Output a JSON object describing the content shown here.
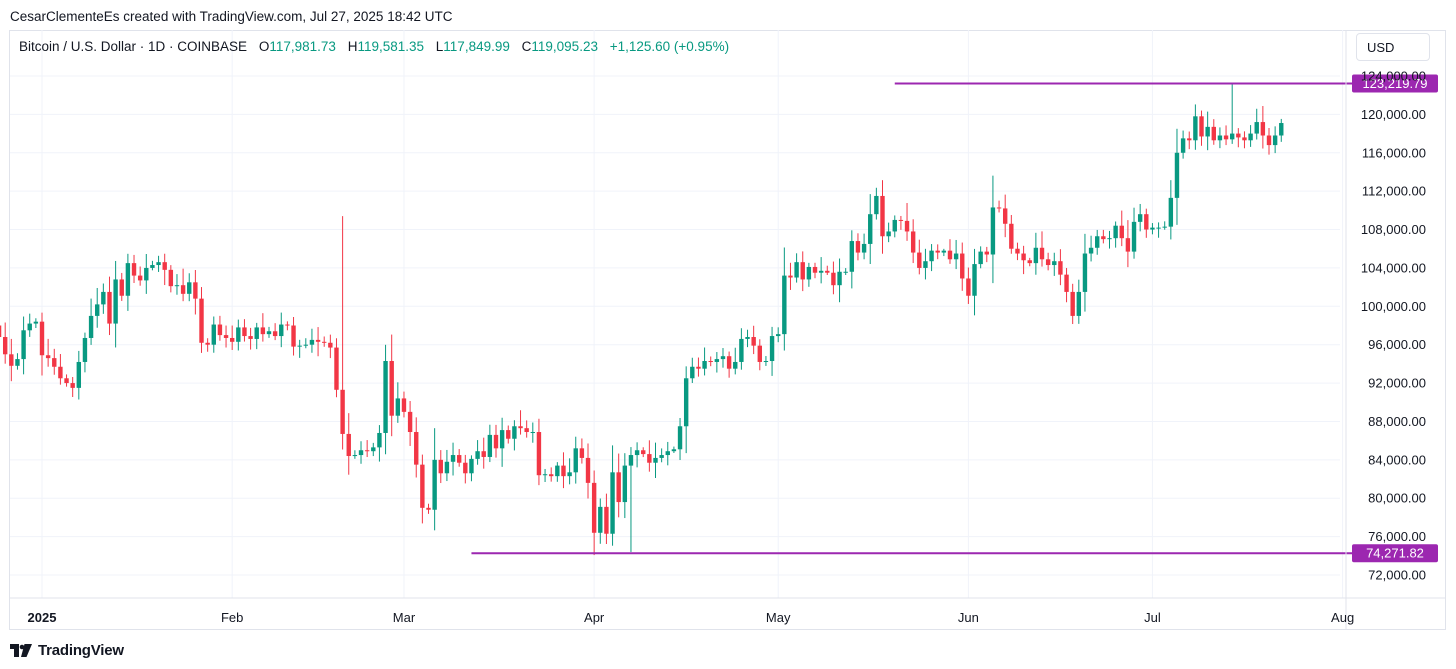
{
  "header": {
    "attribution": "CesarClementeEs created with TradingView.com, Jul 27, 2025 18:42 UTC",
    "symbol": "Bitcoin / U.S. Dollar · 1D · COINBASE",
    "ohlc": {
      "o_label": "O",
      "o": "117,981.73",
      "h_label": "H",
      "h": "119,581.35",
      "l_label": "L",
      "l": "117,849.99",
      "c_label": "C",
      "c": "119,095.23",
      "change": "+1,125.60 (+0.95%)"
    },
    "currency_button": "USD"
  },
  "footer": {
    "brand": "TradingView"
  },
  "colors": {
    "up": "#089981",
    "down": "#F23645",
    "level_line": "#9C27B0",
    "grid": "#F0F3FA",
    "text": "#131722"
  },
  "chart_data": {
    "type": "candlestick",
    "title": "Bitcoin / U.S. Dollar · 1D · COINBASE",
    "xlabel": "",
    "ylabel": "",
    "ylim": [
      70000,
      125000
    ],
    "grid": true,
    "y_ticks": [
      72000,
      76000,
      80000,
      84000,
      88000,
      92000,
      96000,
      100000,
      104000,
      108000,
      112000,
      116000,
      120000,
      124000
    ],
    "y_tick_labels": [
      "72,000.00",
      "76,000.00",
      "80,000.00",
      "84,000.00",
      "88,000.00",
      "92,000.00",
      "96,000.00",
      "100,000.00",
      "104,000.00",
      "108,000.00",
      "112,000.00",
      "116,000.00",
      "120,000.00",
      "124,000.00"
    ],
    "x_ticks": [
      {
        "date": "2025-01-01",
        "label": "2025",
        "bold": true
      },
      {
        "date": "2025-02-01",
        "label": "Feb"
      },
      {
        "date": "2025-03-01",
        "label": "Mar"
      },
      {
        "date": "2025-04-01",
        "label": "Apr"
      },
      {
        "date": "2025-05-01",
        "label": "May"
      },
      {
        "date": "2025-06-01",
        "label": "Jun"
      },
      {
        "date": "2025-07-01",
        "label": "Jul"
      },
      {
        "date": "2025-08-01",
        "label": "Aug"
      }
    ],
    "horizontal_levels": [
      {
        "value": 123219.79,
        "label": "123,219.79",
        "from_date": "2025-05-20"
      },
      {
        "value": 74271.82,
        "label": "74,271.82",
        "from_date": "2025-03-12"
      }
    ],
    "start_date": "2024-12-25",
    "closes": [
      96800,
      95000,
      93800,
      94500,
      97500,
      98200,
      98400,
      94900,
      94600,
      93700,
      92500,
      92000,
      91500,
      94200,
      96700,
      99000,
      100200,
      101500,
      98200,
      102800,
      101100,
      104500,
      103200,
      102700,
      104000,
      104300,
      104600,
      103800,
      102100,
      102200,
      101300,
      102500,
      100800,
      96200,
      96000,
      98100,
      97000,
      96700,
      96300,
      97800,
      96900,
      96600,
      97800,
      97100,
      97400,
      96900,
      98100,
      98000,
      95800,
      95900,
      96000,
      96500,
      96300,
      96200,
      95700,
      91300,
      86700,
      84400,
      84500,
      85000,
      84900,
      85300,
      86800,
      94300,
      88600,
      90400,
      89000,
      86900,
      83500,
      79000,
      78800,
      84000,
      82600,
      83800,
      84500,
      83700,
      82600,
      84100,
      84900,
      84300,
      86600,
      85200,
      87100,
      86200,
      87500,
      87300,
      86900,
      86900,
      82400,
      82500,
      82300,
      83400,
      82300,
      82700,
      85200,
      84200,
      81600,
      76400,
      79100,
      76300,
      82700,
      79600,
      83400,
      84500,
      85000,
      84600,
      83700,
      84200,
      84500,
      84900,
      85100,
      87500,
      92500,
      93700,
      93500,
      94300,
      94200,
      94500,
      94800,
      93500,
      94200,
      96600,
      96800,
      95900,
      94200,
      94300,
      96900,
      97100,
      103200,
      103000,
      104600,
      102800,
      104100,
      103500,
      103700,
      103500,
      102200,
      103600,
      103600,
      106800,
      105600,
      106500,
      109600,
      111500,
      107300,
      107800,
      109000,
      108900,
      107800,
      105600,
      104000,
      104700,
      105800,
      105600,
      105800,
      104900,
      105500,
      102900,
      101100,
      104400,
      105700,
      105400,
      110300,
      110200,
      108600,
      106000,
      105500,
      104800,
      104500,
      106100,
      104900,
      104300,
      104700,
      103300,
      101500,
      99000,
      101500,
      105500,
      106100,
      107300,
      107000,
      107100,
      108400,
      107100,
      105700,
      108800,
      109600,
      108000,
      108200,
      108200,
      108300,
      111300,
      116000,
      117500,
      117300,
      119800,
      117700,
      118700,
      117300,
      117800,
      117400,
      118000,
      117600,
      117300,
      118000,
      119200,
      117800,
      116800,
      117800,
      119100
    ],
    "daily_ranges": [
      {
        "date": "2025-02-19",
        "high": 109400
      },
      {
        "date": "2025-04-07",
        "low": 74400
      },
      {
        "date": "2025-07-14",
        "high": 123219.79
      }
    ],
    "series": [
      {
        "name": "Bitcoin / U.S. Dollar",
        "type": "candlestick"
      }
    ]
  }
}
